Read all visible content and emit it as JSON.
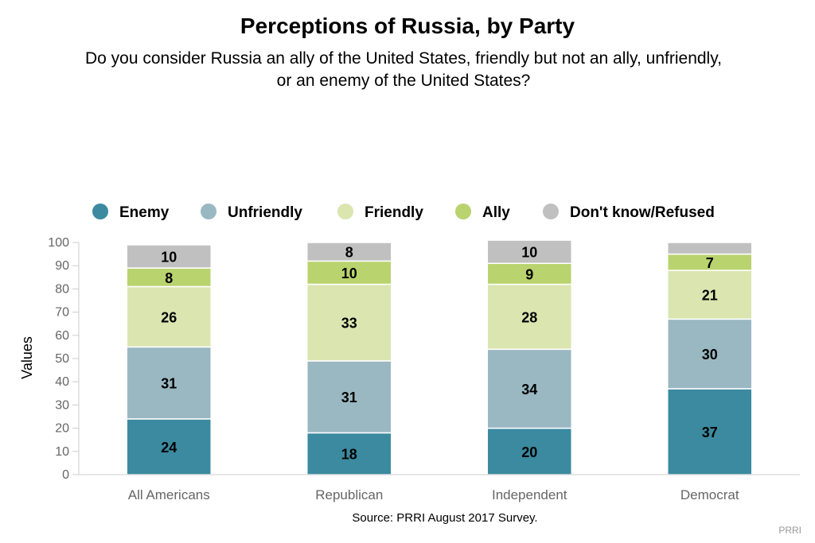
{
  "chart_data": {
    "type": "bar",
    "stacked": true,
    "title": "Perceptions of Russia, by Party",
    "subtitle_lines": [
      "Do you consider Russia an ally of the United States, friendly but not an ally, unfriendly,",
      "or an enemy of the United States?"
    ],
    "ylabel": "Values",
    "ylim": [
      0,
      100
    ],
    "yticks": [
      0,
      10,
      20,
      30,
      40,
      50,
      60,
      70,
      80,
      90,
      100
    ],
    "categories": [
      "All Americans",
      "Republican",
      "Independent",
      "Democrat"
    ],
    "series": [
      {
        "name": "Enemy",
        "color": "#3b8aa0",
        "values": [
          24,
          18,
          20,
          37
        ],
        "labels": [
          "24",
          "18",
          "20",
          "37"
        ]
      },
      {
        "name": "Unfriendly",
        "color": "#9ab8c2",
        "values": [
          31,
          31,
          34,
          30
        ],
        "labels": [
          "31",
          "31",
          "34",
          "30"
        ]
      },
      {
        "name": "Friendly",
        "color": "#dbe5b0",
        "values": [
          26,
          33,
          28,
          21
        ],
        "labels": [
          "26",
          "33",
          "28",
          "21"
        ]
      },
      {
        "name": "Ally",
        "color": "#b9d36e",
        "values": [
          8,
          10,
          9,
          7
        ],
        "labels": [
          "8",
          "10",
          "9",
          "7"
        ]
      },
      {
        "name": "Don't know/Refused",
        "color": "#c0c0c0",
        "values": [
          10,
          8,
          10,
          5
        ],
        "labels": [
          "10",
          "8",
          "10",
          ""
        ]
      }
    ],
    "legend_position": "top",
    "grid": false,
    "source": "Source: PRRI August 2017 Survey.",
    "credit": "PRRI"
  }
}
